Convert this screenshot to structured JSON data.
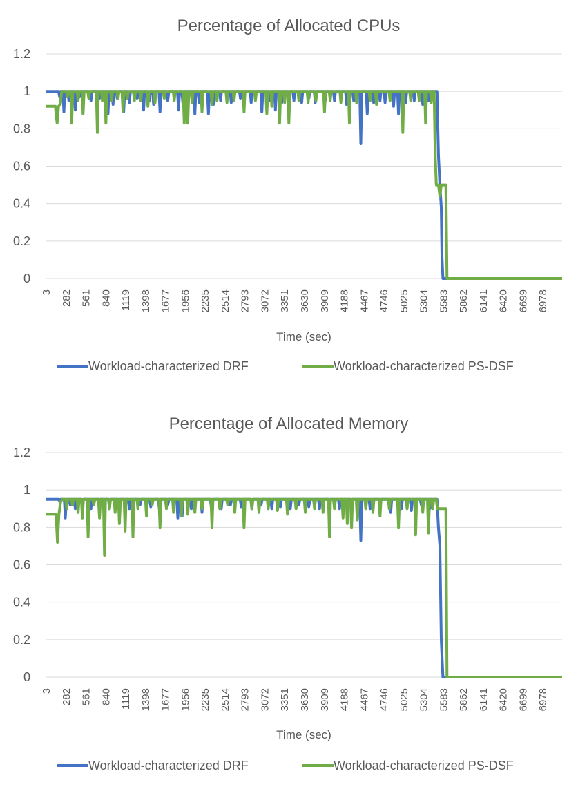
{
  "chart_data": [
    {
      "type": "line",
      "title": "Percentage of Allocated CPUs",
      "xlabel": "Time (sec)",
      "ylabel": "",
      "ylim": [
        0,
        1.2
      ],
      "yticks": [
        "0",
        "0.2",
        "0.4",
        "0.6",
        "0.8",
        "1",
        "1.2"
      ],
      "x_tick_labels": [
        "3",
        "282",
        "561",
        "840",
        "1119",
        "1398",
        "1677",
        "1956",
        "2235",
        "2514",
        "2793",
        "3072",
        "3351",
        "3630",
        "3909",
        "4188",
        "4467",
        "4746",
        "5025",
        "5304",
        "5583",
        "5862",
        "6141",
        "6420",
        "6699",
        "6978"
      ],
      "xlim": [
        3,
        7257
      ],
      "grid": true,
      "legend_position": "bottom",
      "series": [
        {
          "name": "Workload-characterized DRF",
          "color": "#4472c4",
          "baseline": 1.0,
          "dips": [
            [
              200,
              0.97
            ],
            [
              260,
              0.89
            ],
            [
              330,
              0.95
            ],
            [
              420,
              0.9
            ],
            [
              480,
              0.97
            ],
            [
              640,
              0.95
            ],
            [
              760,
              0.96
            ],
            [
              880,
              0.88
            ],
            [
              950,
              0.93
            ],
            [
              1010,
              0.96
            ],
            [
              1100,
              0.89
            ],
            [
              1180,
              0.94
            ],
            [
              1290,
              0.96
            ],
            [
              1380,
              0.9
            ],
            [
              1460,
              0.95
            ],
            [
              1520,
              0.93
            ],
            [
              1610,
              0.89
            ],
            [
              1720,
              0.95
            ],
            [
              1870,
              0.9
            ],
            [
              1930,
              0.94
            ],
            [
              2100,
              0.88
            ],
            [
              2160,
              0.94
            ],
            [
              2290,
              0.88
            ],
            [
              2360,
              0.93
            ],
            [
              2460,
              0.95
            ],
            [
              2610,
              0.94
            ],
            [
              2740,
              0.96
            ],
            [
              2890,
              0.94
            ],
            [
              3040,
              0.89
            ],
            [
              3150,
              0.95
            ],
            [
              3230,
              0.9
            ],
            [
              3320,
              0.94
            ],
            [
              3420,
              0.89
            ],
            [
              3490,
              0.95
            ],
            [
              3600,
              0.94
            ],
            [
              3700,
              0.96
            ],
            [
              3790,
              0.94
            ],
            [
              3930,
              0.95
            ],
            [
              4060,
              0.95
            ],
            [
              4230,
              0.93
            ],
            [
              4330,
              0.95
            ],
            [
              4430,
              0.72
            ],
            [
              4520,
              0.88
            ],
            [
              4610,
              0.94
            ],
            [
              4700,
              0.95
            ],
            [
              4770,
              0.94
            ],
            [
              4890,
              0.92
            ],
            [
              4960,
              0.88
            ],
            [
              5060,
              0.94
            ],
            [
              5180,
              0.95
            ],
            [
              5300,
              0.93
            ],
            [
              5380,
              0.95
            ]
          ],
          "drop": [
            [
              5500,
              1.0
            ],
            [
              5520,
              0.66
            ],
            [
              5540,
              0.5
            ],
            [
              5560,
              0.38
            ],
            [
              5570,
              0.12
            ],
            [
              5583,
              0.0
            ],
            [
              7257,
              0.0
            ]
          ]
        },
        {
          "name": "Workload-characterized PS-DSF",
          "color": "#70ad47",
          "start": [
            [
              3,
              0.92
            ],
            [
              140,
              0.92
            ],
            [
              165,
              0.83
            ],
            [
              185,
              0.92
            ],
            [
              210,
              0.93
            ],
            [
              230,
              1.0
            ]
          ],
          "baseline": 1.0,
          "dips": [
            [
              310,
              0.97
            ],
            [
              370,
              0.83
            ],
            [
              460,
              0.95
            ],
            [
              530,
              0.88
            ],
            [
              610,
              0.96
            ],
            [
              730,
              0.78
            ],
            [
              800,
              0.95
            ],
            [
              850,
              0.83
            ],
            [
              930,
              0.95
            ],
            [
              1020,
              0.96
            ],
            [
              1090,
              0.89
            ],
            [
              1150,
              0.96
            ],
            [
              1250,
              0.95
            ],
            [
              1340,
              0.95
            ],
            [
              1440,
              0.92
            ],
            [
              1540,
              0.94
            ],
            [
              1670,
              0.96
            ],
            [
              1810,
              0.95
            ],
            [
              1950,
              0.83
            ],
            [
              2000,
              0.83
            ],
            [
              2060,
              0.94
            ],
            [
              2200,
              0.89
            ],
            [
              2340,
              0.93
            ],
            [
              2410,
              0.95
            ],
            [
              2550,
              0.94
            ],
            [
              2650,
              0.95
            ],
            [
              2790,
              0.89
            ],
            [
              2950,
              0.95
            ],
            [
              3110,
              0.88
            ],
            [
              3180,
              0.92
            ],
            [
              3290,
              0.83
            ],
            [
              3360,
              0.94
            ],
            [
              3420,
              0.83
            ],
            [
              3560,
              0.95
            ],
            [
              3690,
              0.94
            ],
            [
              3800,
              0.95
            ],
            [
              3920,
              0.89
            ],
            [
              4000,
              0.95
            ],
            [
              4150,
              0.94
            ],
            [
              4270,
              0.83
            ],
            [
              4370,
              0.94
            ],
            [
              4560,
              0.95
            ],
            [
              4650,
              0.93
            ],
            [
              4840,
              0.95
            ],
            [
              5020,
              0.78
            ],
            [
              5130,
              0.95
            ],
            [
              5250,
              0.95
            ],
            [
              5340,
              0.83
            ],
            [
              5420,
              0.94
            ]
          ],
          "drop": [
            [
              5460,
              1.0
            ],
            [
              5475,
              0.66
            ],
            [
              5490,
              0.5
            ],
            [
              5520,
              0.5
            ],
            [
              5540,
              0.44
            ],
            [
              5560,
              0.5
            ],
            [
              5625,
              0.5
            ],
            [
              5640,
              0.0
            ],
            [
              7257,
              0.0
            ]
          ]
        }
      ]
    },
    {
      "type": "line",
      "title": "Percentage of Allocated Memory",
      "xlabel": "Time (sec)",
      "ylabel": "",
      "ylim": [
        0,
        1.2
      ],
      "yticks": [
        "0",
        "0.2",
        "0.4",
        "0.6",
        "0.8",
        "1",
        "1.2"
      ],
      "x_tick_labels": [
        "3",
        "282",
        "561",
        "840",
        "1119",
        "1398",
        "1677",
        "1956",
        "2235",
        "2514",
        "2793",
        "3072",
        "3351",
        "3630",
        "3909",
        "4188",
        "4467",
        "4746",
        "5025",
        "5304",
        "5583",
        "5862",
        "6141",
        "6420",
        "6699",
        "6978"
      ],
      "xlim": [
        3,
        7257
      ],
      "grid": true,
      "legend_position": "bottom",
      "series": [
        {
          "name": "Workload-characterized DRF",
          "color": "#4472c4",
          "baseline": 0.95,
          "dips": [
            [
              200,
              0.94
            ],
            [
              280,
              0.85
            ],
            [
              350,
              0.92
            ],
            [
              420,
              0.9
            ],
            [
              520,
              0.92
            ],
            [
              640,
              0.9
            ],
            [
              760,
              0.92
            ],
            [
              900,
              0.9
            ],
            [
              1030,
              0.91
            ],
            [
              1180,
              0.9
            ],
            [
              1330,
              0.92
            ],
            [
              1480,
              0.91
            ],
            [
              1600,
              0.9
            ],
            [
              1720,
              0.92
            ],
            [
              1860,
              0.85
            ],
            [
              1920,
              0.86
            ],
            [
              2050,
              0.9
            ],
            [
              2200,
              0.88
            ],
            [
              2330,
              0.91
            ],
            [
              2470,
              0.9
            ],
            [
              2600,
              0.92
            ],
            [
              2750,
              0.91
            ],
            [
              2900,
              0.9
            ],
            [
              3030,
              0.92
            ],
            [
              3180,
              0.9
            ],
            [
              3300,
              0.91
            ],
            [
              3440,
              0.9
            ],
            [
              3560,
              0.92
            ],
            [
              3700,
              0.91
            ],
            [
              3850,
              0.9
            ],
            [
              3990,
              0.91
            ],
            [
              4130,
              0.9
            ],
            [
              4300,
              0.88
            ],
            [
              4430,
              0.73
            ],
            [
              4560,
              0.9
            ],
            [
              4700,
              0.91
            ],
            [
              4850,
              0.88
            ],
            [
              5000,
              0.9
            ],
            [
              5140,
              0.89
            ],
            [
              5280,
              0.92
            ],
            [
              5400,
              0.9
            ]
          ],
          "drop": [
            [
              5500,
              0.95
            ],
            [
              5520,
              0.8
            ],
            [
              5540,
              0.7
            ],
            [
              5560,
              0.2
            ],
            [
              5583,
              0.0
            ],
            [
              7257,
              0.0
            ]
          ]
        },
        {
          "name": "Workload-characterized PS-DSF",
          "color": "#70ad47",
          "start": [
            [
              3,
              0.87
            ],
            [
              150,
              0.87
            ],
            [
              170,
              0.72
            ],
            [
              190,
              0.87
            ],
            [
              215,
              0.94
            ],
            [
              240,
              0.95
            ]
          ],
          "baseline": 0.95,
          "dips": [
            [
              300,
              0.9
            ],
            [
              380,
              0.92
            ],
            [
              460,
              0.88
            ],
            [
              520,
              0.85
            ],
            [
              600,
              0.75
            ],
            [
              680,
              0.92
            ],
            [
              760,
              0.85
            ],
            [
              830,
              0.65
            ],
            [
              900,
              0.9
            ],
            [
              980,
              0.88
            ],
            [
              1040,
              0.82
            ],
            [
              1120,
              0.78
            ],
            [
              1230,
              0.75
            ],
            [
              1300,
              0.9
            ],
            [
              1420,
              0.86
            ],
            [
              1500,
              0.92
            ],
            [
              1610,
              0.8
            ],
            [
              1700,
              0.9
            ],
            [
              1800,
              0.88
            ],
            [
              1910,
              0.86
            ],
            [
              2000,
              0.87
            ],
            [
              2100,
              0.88
            ],
            [
              2200,
              0.9
            ],
            [
              2340,
              0.8
            ],
            [
              2450,
              0.9
            ],
            [
              2560,
              0.92
            ],
            [
              2660,
              0.88
            ],
            [
              2790,
              0.8
            ],
            [
              2900,
              0.9
            ],
            [
              3000,
              0.88
            ],
            [
              3130,
              0.9
            ],
            [
              3260,
              0.89
            ],
            [
              3400,
              0.87
            ],
            [
              3520,
              0.9
            ],
            [
              3650,
              0.88
            ],
            [
              3780,
              0.9
            ],
            [
              3900,
              0.88
            ],
            [
              3990,
              0.75
            ],
            [
              4060,
              0.9
            ],
            [
              4180,
              0.85
            ],
            [
              4240,
              0.82
            ],
            [
              4300,
              0.8
            ],
            [
              4380,
              0.84
            ],
            [
              4500,
              0.9
            ],
            [
              4600,
              0.88
            ],
            [
              4700,
              0.86
            ],
            [
              4830,
              0.9
            ],
            [
              4960,
              0.8
            ],
            [
              5080,
              0.9
            ],
            [
              5200,
              0.76
            ],
            [
              5300,
              0.88
            ],
            [
              5380,
              0.77
            ],
            [
              5440,
              0.9
            ]
          ],
          "drop": [
            [
              5490,
              0.95
            ],
            [
              5505,
              0.9
            ],
            [
              5625,
              0.9
            ],
            [
              5640,
              0.0
            ],
            [
              7257,
              0.0
            ]
          ]
        }
      ]
    }
  ]
}
